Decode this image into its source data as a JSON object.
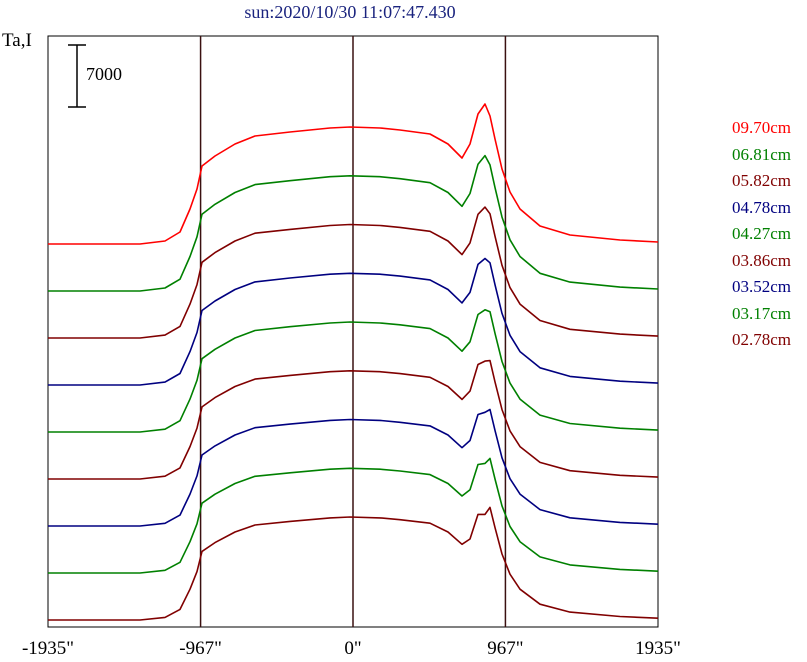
{
  "chart_data": {
    "type": "line",
    "title": "sun:2020/10/30 11:07:47.430",
    "ylabel": "Ta,I",
    "scale_bar_label": "7000",
    "x_ticks": [
      "-1935\"",
      "-967\"",
      "0\"",
      "967\"",
      "1935\""
    ],
    "x_tick_values": [
      -1935,
      -967,
      0,
      967,
      1935
    ],
    "xlim": [
      -1935,
      1935
    ],
    "vertical_lines": [
      -967,
      0,
      967
    ],
    "series": [
      {
        "name": "09.70cm",
        "color": "#ff0000"
      },
      {
        "name": "06.81cm",
        "color": "#008000"
      },
      {
        "name": "05.82cm",
        "color": "#800000"
      },
      {
        "name": "04.78cm",
        "color": "#000080"
      },
      {
        "name": "04.27cm",
        "color": "#008000"
      },
      {
        "name": "03.86cm",
        "color": "#800000"
      },
      {
        "name": "03.52cm",
        "color": "#000080"
      },
      {
        "name": "03.17cm",
        "color": "#008000"
      },
      {
        "name": "02.78cm",
        "color": "#800000"
      }
    ]
  }
}
